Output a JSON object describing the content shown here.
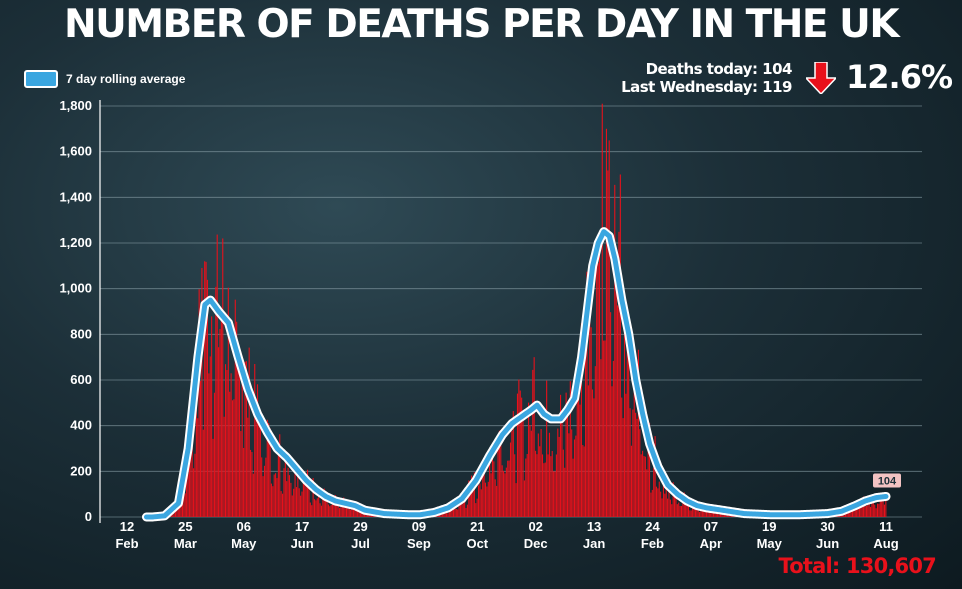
{
  "title": "NUMBER OF DEATHS PER DAY IN THE UK",
  "legend_label": "7 day rolling average",
  "stats": {
    "deaths_today": "Deaths today: 104",
    "last_wednesday": "Last Wednesday: 119",
    "change": "12.6%",
    "arrow_icon": "down-arrow-icon",
    "arrow_color": "#e8111b"
  },
  "total": "Total: 130,607",
  "last_value_label": "104",
  "colors": {
    "bars": "#e8111b",
    "line": "#3aa6e0",
    "line_outline": "#ffffff",
    "total": "#e8111b"
  },
  "chart_data": {
    "type": "bar",
    "title": "NUMBER OF DEATHS PER DAY IN THE UK",
    "ylim": [
      0,
      1800
    ],
    "yticks": [
      "0",
      "200",
      "400",
      "600",
      "800",
      "1,000",
      "1,200",
      "1,400",
      "1,600",
      "1,800"
    ],
    "xticks": [
      {
        "day": "12",
        "month": "Feb"
      },
      {
        "day": "25",
        "month": "Mar"
      },
      {
        "day": "06",
        "month": "May"
      },
      {
        "day": "17",
        "month": "Jun"
      },
      {
        "day": "29",
        "month": "Jul"
      },
      {
        "day": "09",
        "month": "Sep"
      },
      {
        "day": "21",
        "month": "Oct"
      },
      {
        "day": "02",
        "month": "Dec"
      },
      {
        "day": "13",
        "month": "Jan"
      },
      {
        "day": "24",
        "month": "Feb"
      },
      {
        "day": "07",
        "month": "Apr"
      },
      {
        "day": "19",
        "month": "May"
      },
      {
        "day": "30",
        "month": "Jun"
      },
      {
        "day": "11",
        "month": "Aug"
      }
    ],
    "grid": true,
    "series": [
      {
        "name": "7 day rolling average",
        "type": "line",
        "points": [
          [
            "2020-03-01",
            0
          ],
          [
            "2020-03-10",
            5
          ],
          [
            "2020-03-20",
            60
          ],
          [
            "2020-03-27",
            300
          ],
          [
            "2020-04-03",
            700
          ],
          [
            "2020-04-08",
            930
          ],
          [
            "2020-04-12",
            950
          ],
          [
            "2020-04-18",
            900
          ],
          [
            "2020-04-25",
            850
          ],
          [
            "2020-05-02",
            700
          ],
          [
            "2020-05-09",
            560
          ],
          [
            "2020-05-16",
            450
          ],
          [
            "2020-05-23",
            370
          ],
          [
            "2020-05-30",
            300
          ],
          [
            "2020-06-06",
            260
          ],
          [
            "2020-06-13",
            210
          ],
          [
            "2020-06-20",
            160
          ],
          [
            "2020-06-27",
            120
          ],
          [
            "2020-07-04",
            90
          ],
          [
            "2020-07-11",
            70
          ],
          [
            "2020-07-18",
            60
          ],
          [
            "2020-07-25",
            50
          ],
          [
            "2020-08-01",
            30
          ],
          [
            "2020-08-15",
            15
          ],
          [
            "2020-09-01",
            10
          ],
          [
            "2020-09-10",
            10
          ],
          [
            "2020-09-20",
            20
          ],
          [
            "2020-09-30",
            40
          ],
          [
            "2020-10-10",
            80
          ],
          [
            "2020-10-20",
            160
          ],
          [
            "2020-10-30",
            270
          ],
          [
            "2020-11-08",
            360
          ],
          [
            "2020-11-15",
            410
          ],
          [
            "2020-11-22",
            440
          ],
          [
            "2020-11-29",
            470
          ],
          [
            "2020-12-03",
            490
          ],
          [
            "2020-12-08",
            450
          ],
          [
            "2020-12-13",
            430
          ],
          [
            "2020-12-20",
            430
          ],
          [
            "2020-12-25",
            470
          ],
          [
            "2020-12-30",
            520
          ],
          [
            "2021-01-04",
            700
          ],
          [
            "2021-01-08",
            900
          ],
          [
            "2021-01-12",
            1100
          ],
          [
            "2021-01-16",
            1200
          ],
          [
            "2021-01-20",
            1250
          ],
          [
            "2021-01-24",
            1230
          ],
          [
            "2021-01-28",
            1130
          ],
          [
            "2021-02-02",
            950
          ],
          [
            "2021-02-07",
            800
          ],
          [
            "2021-02-12",
            600
          ],
          [
            "2021-02-17",
            450
          ],
          [
            "2021-02-22",
            320
          ],
          [
            "2021-02-28",
            220
          ],
          [
            "2021-03-07",
            140
          ],
          [
            "2021-03-14",
            100
          ],
          [
            "2021-03-21",
            70
          ],
          [
            "2021-03-28",
            50
          ],
          [
            "2021-04-04",
            40
          ],
          [
            "2021-04-15",
            30
          ],
          [
            "2021-05-01",
            15
          ],
          [
            "2021-05-20",
            10
          ],
          [
            "2021-06-10",
            10
          ],
          [
            "2021-06-30",
            15
          ],
          [
            "2021-07-10",
            25
          ],
          [
            "2021-07-20",
            50
          ],
          [
            "2021-07-27",
            70
          ],
          [
            "2021-08-04",
            85
          ],
          [
            "2021-08-11",
            90
          ]
        ]
      },
      {
        "name": "Deaths per day",
        "type": "bar",
        "peaks": [
          [
            "2020-04-08",
            1120
          ],
          [
            "2020-04-21",
            1220
          ],
          [
            "2020-05-05",
            700
          ],
          [
            "2020-12-01",
            700
          ],
          [
            "2021-01-19",
            1810
          ],
          [
            "2021-02-01",
            1500
          ],
          [
            "2021-08-11",
            104
          ]
        ]
      }
    ]
  }
}
